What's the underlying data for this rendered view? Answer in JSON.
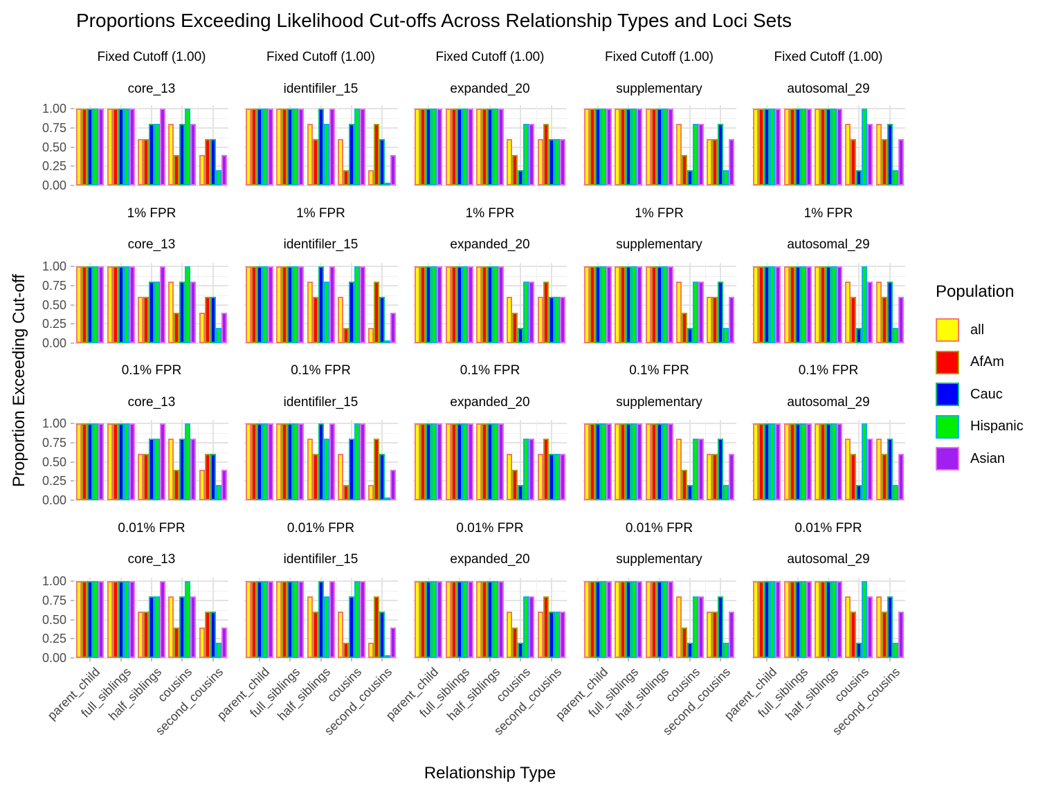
{
  "title": "Proportions Exceeding Likelihood Cut-offs Across Relationship Types and Loci Sets",
  "y_axis": {
    "label": "Proportion Exceeding Cut-off",
    "tick_labels": [
      "1.00",
      "0.75",
      "0.50",
      "0.25",
      "0.00"
    ]
  },
  "x_axis": {
    "label": "Relationship Type",
    "tick_labels": [
      "parent_child",
      "full_siblings",
      "half_siblings",
      "cousins",
      "second_cousins"
    ]
  },
  "legend": {
    "title": "Population",
    "entries": [
      {
        "label": "all",
        "fill": "#FFFF00",
        "outline": "#F8766D"
      },
      {
        "label": "AfAm",
        "fill": "#FF0000",
        "outline": "#A3A500"
      },
      {
        "label": "Cauc",
        "fill": "#0000FF",
        "outline": "#00BF7D"
      },
      {
        "label": "Hispanic",
        "fill": "#00EE00",
        "outline": "#00B0F6"
      },
      {
        "label": "Asian",
        "fill": "#A020F0",
        "outline": "#E76BF3"
      }
    ]
  },
  "chart_data": {
    "type": "bar",
    "title": "Proportions Exceeding Likelihood Cut-offs Across Relationship Types and Loci Sets",
    "xlabel": "Relationship Type",
    "ylabel": "Proportion Exceeding Cut-off",
    "ylim": [
      0,
      1
    ],
    "y_major_ticks": [
      1.0,
      0.75,
      0.5,
      0.25,
      0.0
    ],
    "grid": "major and minor, light gray on white",
    "legend_position": "right",
    "facet_rows": [
      "Fixed Cutoff (1.00)",
      "1% FPR",
      "0.1% FPR",
      "0.01% FPR"
    ],
    "facet_cols": [
      "core_13",
      "identifiler_15",
      "expanded_20",
      "supplementary",
      "autosomal_29"
    ],
    "categories": [
      "parent_child",
      "full_siblings",
      "half_siblings",
      "cousins",
      "second_cousins"
    ],
    "series_names": [
      "all",
      "AfAm",
      "Cauc",
      "Hispanic",
      "Asian"
    ],
    "series_fill_colors": [
      "#FFFF00",
      "#FF0000",
      "#0000FF",
      "#00EE00",
      "#A020F0"
    ],
    "series_outline_colors": [
      "#F8766D",
      "#A3A500",
      "#00BF7D",
      "#00B0F6",
      "#E76BF3"
    ],
    "values_identical_across_rows": true,
    "values_by_facet_col": {
      "core_13": {
        "parent_child": [
          1.0,
          1.0,
          1.0,
          1.0,
          1.0
        ],
        "full_siblings": [
          1.0,
          1.0,
          1.0,
          1.0,
          1.0
        ],
        "half_siblings": [
          0.6,
          0.6,
          0.8,
          0.8,
          1.0
        ],
        "cousins": [
          0.8,
          0.4,
          0.8,
          1.0,
          0.8
        ],
        "second_cousins": [
          0.4,
          0.6,
          0.6,
          0.2,
          0.4
        ]
      },
      "identifiler_15": {
        "parent_child": [
          1.0,
          1.0,
          1.0,
          1.0,
          1.0
        ],
        "full_siblings": [
          1.0,
          1.0,
          1.0,
          1.0,
          1.0
        ],
        "half_siblings": [
          0.8,
          0.6,
          1.0,
          0.8,
          1.0
        ],
        "cousins": [
          0.6,
          0.2,
          0.8,
          1.0,
          1.0
        ],
        "second_cousins": [
          0.2,
          0.8,
          0.6,
          0.0,
          0.4
        ]
      },
      "expanded_20": {
        "parent_child": [
          1.0,
          1.0,
          1.0,
          1.0,
          1.0
        ],
        "full_siblings": [
          1.0,
          1.0,
          1.0,
          1.0,
          1.0
        ],
        "half_siblings": [
          1.0,
          1.0,
          1.0,
          1.0,
          1.0
        ],
        "cousins": [
          0.6,
          0.4,
          0.2,
          0.8,
          0.8
        ],
        "second_cousins": [
          0.6,
          0.8,
          0.6,
          0.6,
          0.6
        ]
      },
      "supplementary": {
        "parent_child": [
          1.0,
          1.0,
          1.0,
          1.0,
          1.0
        ],
        "full_siblings": [
          1.0,
          1.0,
          1.0,
          1.0,
          1.0
        ],
        "half_siblings": [
          1.0,
          1.0,
          1.0,
          1.0,
          1.0
        ],
        "cousins": [
          0.8,
          0.4,
          0.2,
          0.8,
          0.8
        ],
        "second_cousins": [
          0.6,
          0.6,
          0.8,
          0.2,
          0.6
        ]
      },
      "autosomal_29": {
        "parent_child": [
          1.0,
          1.0,
          1.0,
          1.0,
          1.0
        ],
        "full_siblings": [
          1.0,
          1.0,
          1.0,
          1.0,
          1.0
        ],
        "half_siblings": [
          1.0,
          1.0,
          1.0,
          1.0,
          1.0
        ],
        "cousins": [
          0.8,
          0.6,
          0.2,
          1.0,
          0.8
        ],
        "second_cousins": [
          0.8,
          0.6,
          0.8,
          0.2,
          0.6
        ]
      }
    }
  }
}
